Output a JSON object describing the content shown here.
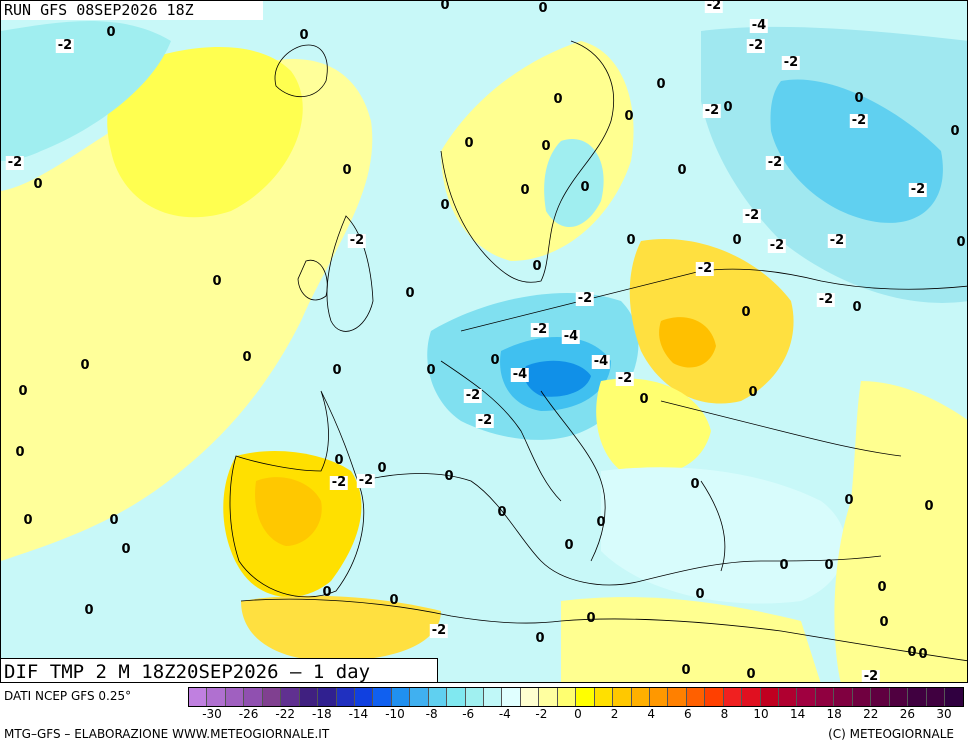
{
  "header": {
    "run_label": "RUN GFS 08SEP2026 18Z"
  },
  "map": {
    "field_title": "DIF TMP 2 M 18Z20SEP2026 – 1 day",
    "contour_labels": [
      "-2",
      "0",
      "0",
      "-2",
      "0",
      "0",
      "-2",
      "-4",
      "-2",
      "-2",
      "0",
      "0",
      "-2",
      "0",
      "-2",
      "0",
      "0",
      "0",
      "0",
      "0",
      "-2",
      "-2",
      "0",
      "0",
      "0",
      "0",
      "0",
      "0",
      "-2",
      "-2",
      "-2",
      "-2",
      "0",
      "0",
      "-2",
      "-2",
      "0",
      "0",
      "0",
      "0",
      "0",
      "-2",
      "-4",
      "-4",
      "-2",
      "-4",
      "-2",
      "-2",
      "-2",
      "0",
      "0",
      "0",
      "0",
      "0",
      "0",
      "-2",
      "-2",
      "0",
      "0",
      "0",
      "0",
      "0",
      "0",
      "0",
      "0",
      "0",
      "0",
      "0",
      "0",
      "0",
      "0",
      "0",
      "0",
      "0",
      "0",
      "0",
      "0",
      "0",
      "0",
      "0",
      "0",
      "0",
      "0",
      "0",
      "-2",
      "0",
      "0",
      "-2",
      "0"
    ]
  },
  "legend": {
    "data_source": "DATI NCEP GFS 0.25°",
    "tick_labels": [
      "-30",
      "-26",
      "-22",
      "-18",
      "-14",
      "-10",
      "-8",
      "-6",
      "-4",
      "-2",
      "0",
      "2",
      "4",
      "6",
      "8",
      "10",
      "14",
      "18",
      "22",
      "26",
      "30"
    ],
    "colors": [
      "#c080e0",
      "#b070d0",
      "#a060c0",
      "#9050b0",
      "#804090",
      "#603090",
      "#402080",
      "#302090",
      "#2030c0",
      "#1040e0",
      "#1060f0",
      "#2090f0",
      "#40b0f0",
      "#60d0f0",
      "#80e8f0",
      "#a0f0f0",
      "#c0f8f8",
      "#e0ffff",
      "#ffffd0",
      "#ffffa0",
      "#ffff70",
      "#ffff00",
      "#ffe000",
      "#ffc800",
      "#ffb000",
      "#ff9800",
      "#ff8000",
      "#ff6000",
      "#ff4000",
      "#f02020",
      "#e01020",
      "#c00020",
      "#b00030",
      "#a00040",
      "#900040",
      "#800040",
      "#700040",
      "#600040",
      "#500040",
      "#400040",
      "#400040",
      "#300040"
    ]
  },
  "footer": {
    "credit_left": "MTG–GFS – ELABORAZIONE WWW.METEOGIORNALE.IT",
    "credit_right": "(C) METEOGIORNALE"
  }
}
